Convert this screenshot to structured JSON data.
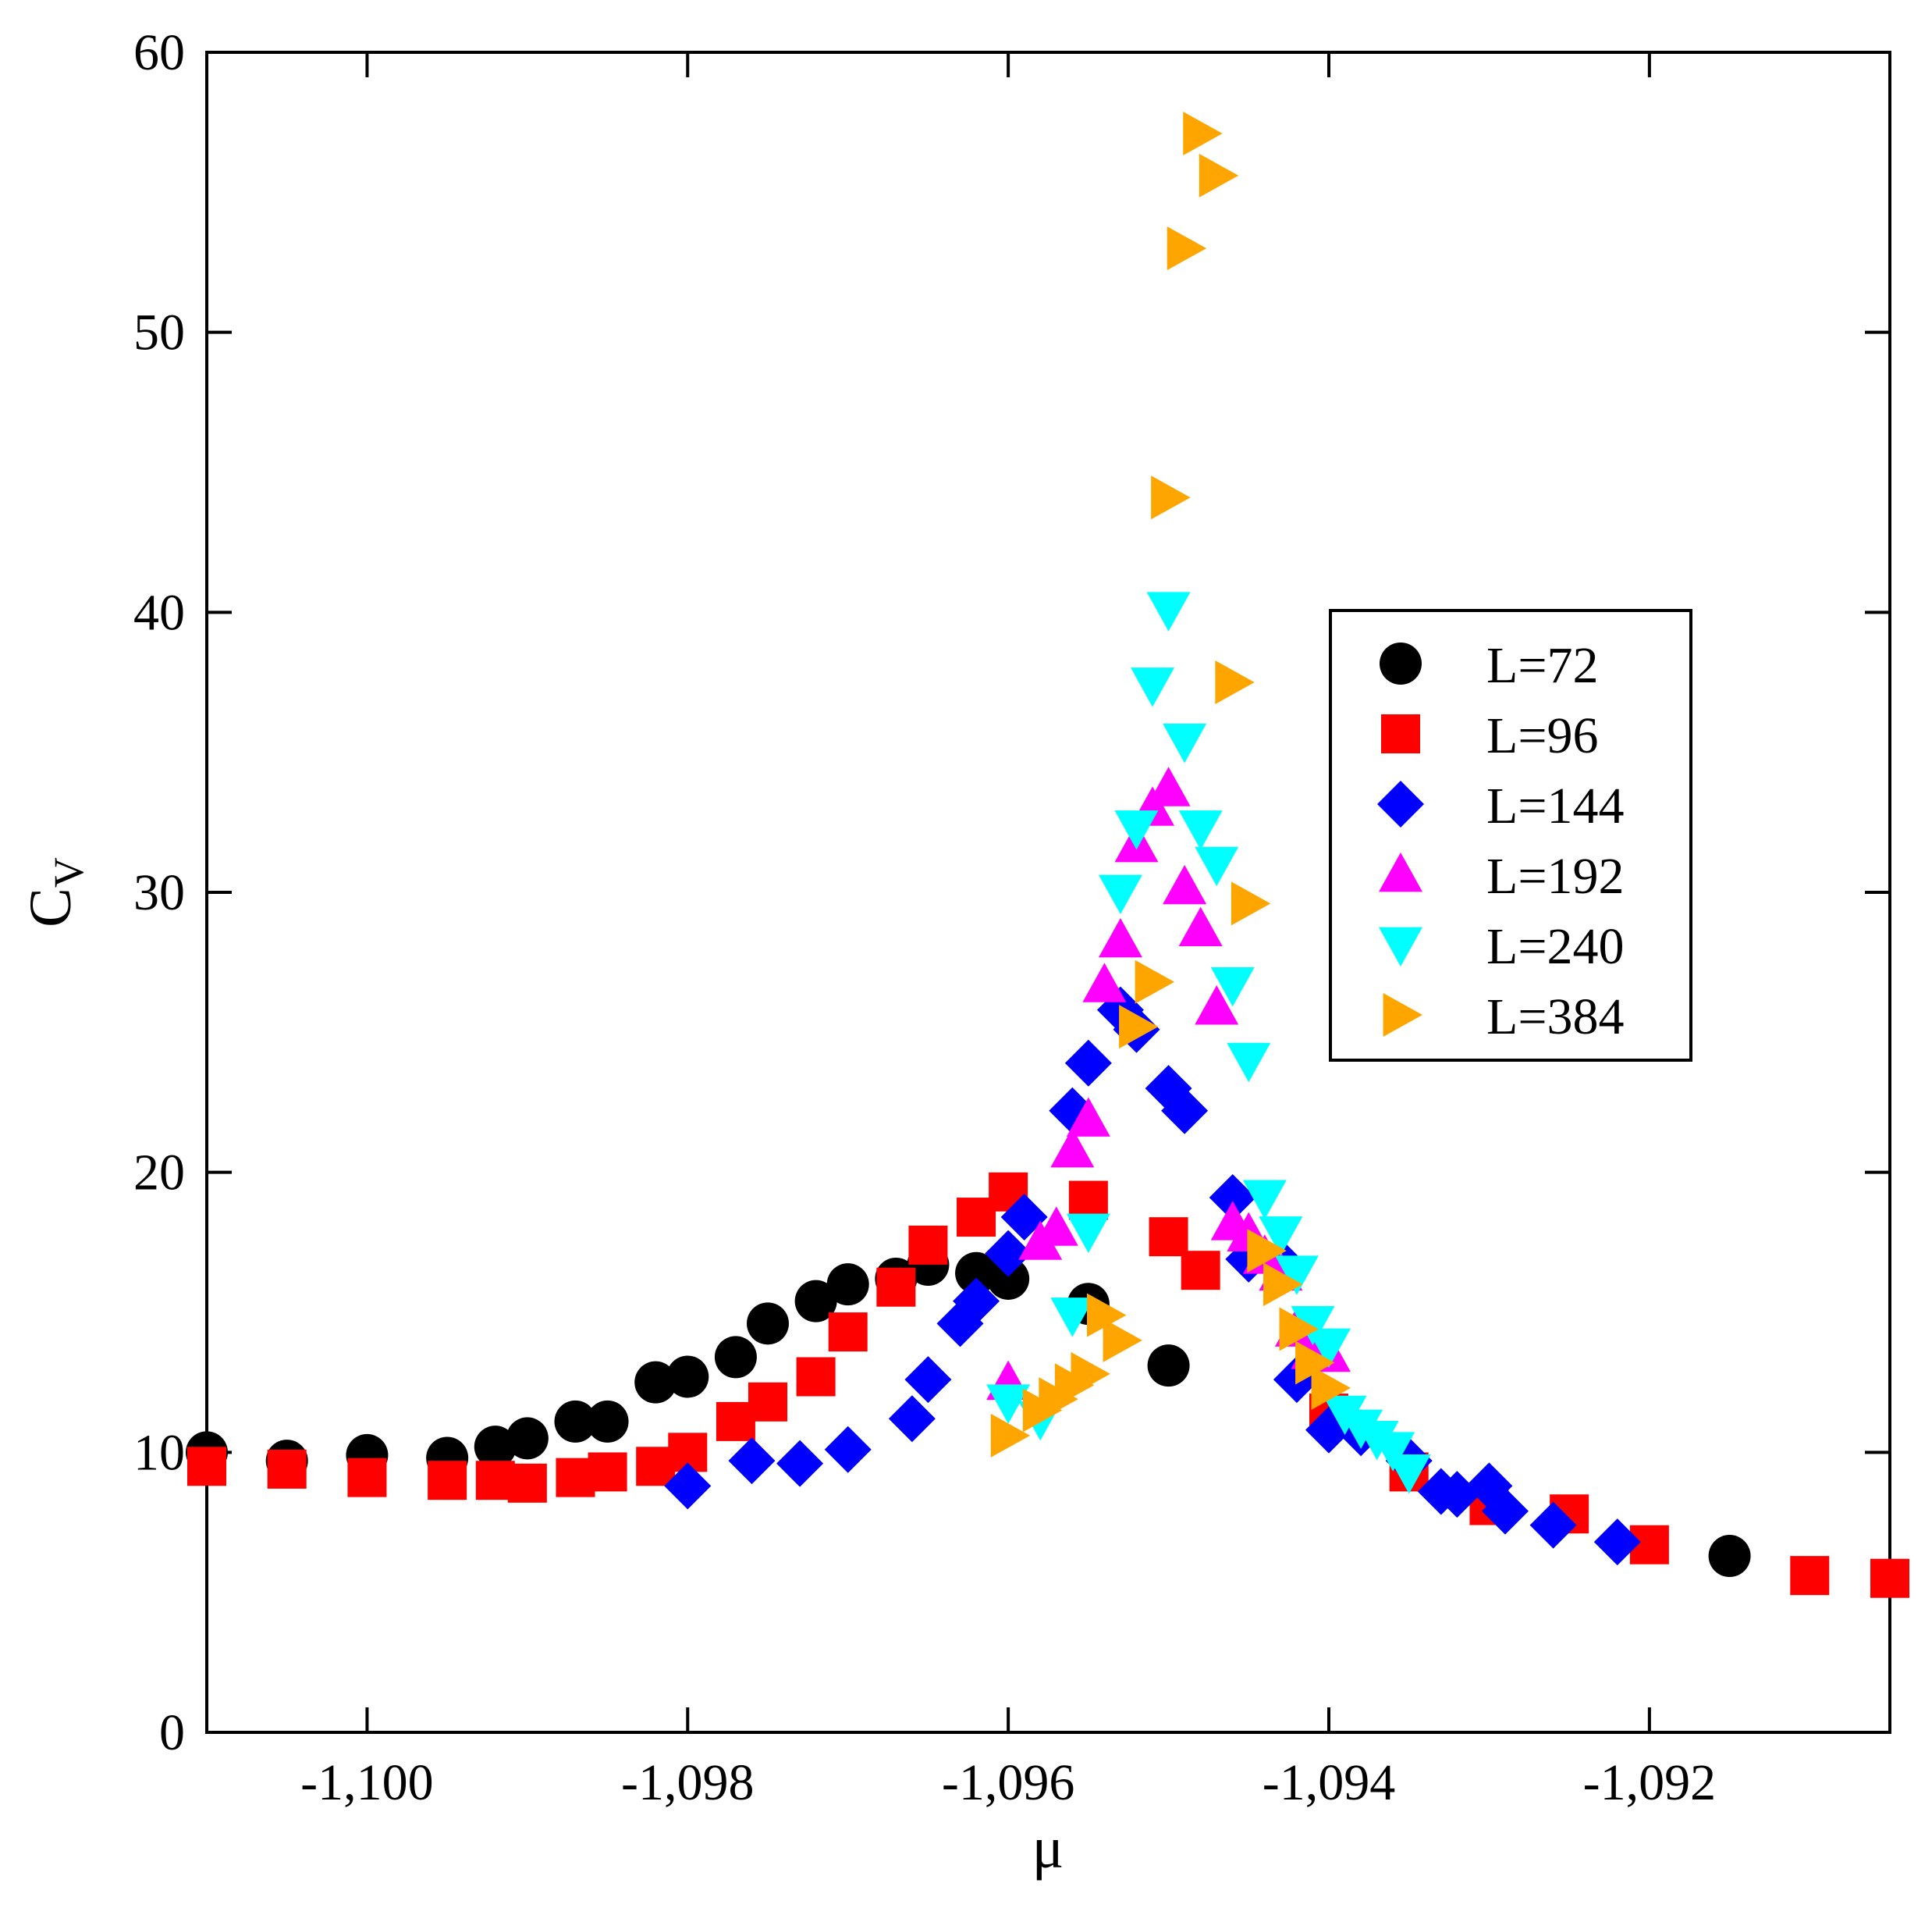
{
  "chart_data": {
    "type": "scatter",
    "title": "",
    "xlabel": "μ",
    "ylabel": "C",
    "ylabel_sub": "V",
    "xlim": [
      -1.101,
      -1.0905
    ],
    "ylim": [
      0,
      60
    ],
    "x_ticks": [
      -1.1,
      -1.098,
      -1.096,
      -1.094,
      -1.092
    ],
    "x_tick_labels": [
      "-1,100",
      "-1,098",
      "-1,096",
      "-1,094",
      "-1,092"
    ],
    "y_ticks": [
      0,
      10,
      20,
      30,
      40,
      50,
      60
    ],
    "y_tick_labels": [
      "0",
      "10",
      "20",
      "30",
      "40",
      "50",
      "60"
    ],
    "grid": false,
    "legend_position": "right",
    "series": [
      {
        "name": "L=72",
        "marker": "circle",
        "color": "#000000",
        "x": [
          -1.101,
          -1.1005,
          -1.1,
          -1.0995,
          -1.0992,
          -1.099,
          -1.0987,
          -1.0985,
          -1.0982,
          -1.098,
          -1.0977,
          -1.0975,
          -1.0972,
          -1.097,
          -1.0967,
          -1.0965,
          -1.0962,
          -1.096,
          -1.0955,
          -1.095,
          -1.0915
        ],
        "y": [
          10.0,
          9.7,
          9.9,
          9.8,
          10.2,
          10.5,
          11.1,
          11.1,
          12.5,
          12.7,
          13.4,
          14.6,
          15.4,
          16.0,
          16.2,
          16.7,
          16.4,
          16.2,
          15.3,
          13.1,
          6.3
        ]
      },
      {
        "name": "L=96",
        "marker": "square",
        "color": "#ff0000",
        "x": [
          -1.101,
          -1.1005,
          -1.1,
          -1.0995,
          -1.0992,
          -1.099,
          -1.0987,
          -1.0985,
          -1.0982,
          -1.098,
          -1.0977,
          -1.0975,
          -1.0972,
          -1.097,
          -1.0967,
          -1.0965,
          -1.0962,
          -1.096,
          -1.0955,
          -1.095,
          -1.0948,
          -1.094,
          -1.0935,
          -1.093,
          -1.0925,
          -1.092,
          -1.091,
          -1.0905
        ],
        "y": [
          9.5,
          9.4,
          9.1,
          9.0,
          9.0,
          8.9,
          9.1,
          9.3,
          9.5,
          10.0,
          11.1,
          11.8,
          12.7,
          14.3,
          15.9,
          17.4,
          18.4,
          19.3,
          19.0,
          17.7,
          16.5,
          11.4,
          9.3,
          8.1,
          7.8,
          6.7,
          5.6,
          5.5
        ]
      },
      {
        "name": "L=144",
        "marker": "diamond",
        "color": "#0000ff",
        "x": [
          -1.098,
          -1.0976,
          -1.0973,
          -1.097,
          -1.0966,
          -1.0965,
          -1.0963,
          -1.0962,
          -1.096,
          -1.0959,
          -1.0956,
          -1.0955,
          -1.0953,
          -1.0952,
          -1.095,
          -1.0949,
          -1.0946,
          -1.0945,
          -1.0943,
          -1.0942,
          -1.094,
          -1.0938,
          -1.0935,
          -1.0933,
          -1.0932,
          -1.093,
          -1.0929,
          -1.0926,
          -1.0922
        ],
        "y": [
          8.8,
          9.7,
          9.6,
          10.1,
          11.2,
          12.6,
          14.6,
          15.4,
          17.1,
          18.4,
          22.2,
          23.9,
          25.8,
          25.1,
          23.0,
          22.2,
          19.1,
          16.9,
          16.8,
          12.6,
          10.8,
          10.7,
          9.7,
          8.6,
          8.5,
          8.8,
          7.9,
          7.4,
          6.8
        ]
      },
      {
        "name": "L=192",
        "marker": "triangle-up",
        "color": "#ff00ff",
        "x": [
          -1.096,
          -1.0958,
          -1.0957,
          -1.0956,
          -1.0955,
          -1.0954,
          -1.0953,
          -1.0952,
          -1.0951,
          -1.095,
          -1.0949,
          -1.0948,
          -1.0947,
          -1.0946,
          -1.0945,
          -1.0944,
          -1.0943,
          -1.0942,
          -1.0941,
          -1.094
        ],
        "y": [
          12.5,
          17.5,
          18.0,
          20.8,
          21.9,
          26.7,
          28.3,
          31.7,
          33.0,
          33.7,
          30.2,
          28.7,
          25.9,
          18.2,
          17.8,
          17.0,
          16.4,
          14.4,
          13.6,
          13.5
        ]
      },
      {
        "name": "L=240",
        "marker": "triangle-down",
        "color": "#00ffff",
        "x": [
          -1.096,
          -1.0958,
          -1.0956,
          -1.0955,
          -1.0953,
          -1.0952,
          -1.0951,
          -1.095,
          -1.0949,
          -1.0948,
          -1.0947,
          -1.0946,
          -1.0945,
          -1.0944,
          -1.0943,
          -1.0942,
          -1.0941,
          -1.094,
          -1.0939,
          -1.0938,
          -1.0937,
          -1.0936,
          -1.0935
        ],
        "y": [
          11.8,
          11.2,
          14.9,
          17.9,
          30.0,
          32.3,
          37.4,
          40.1,
          35.4,
          32.3,
          31.0,
          26.7,
          24.0,
          19.1,
          17.8,
          16.4,
          14.6,
          13.8,
          11.4,
          10.9,
          10.5,
          10.1,
          9.3
        ]
      },
      {
        "name": "L=384",
        "marker": "triangle-right",
        "color": "#ffa500",
        "x": [
          -1.096,
          -1.0958,
          -1.0957,
          -1.0956,
          -1.0955,
          -1.0954,
          -1.0953,
          -1.0952,
          -1.0951,
          -1.095,
          -1.0949,
          -1.0948,
          -1.0947,
          -1.0946,
          -1.0945,
          -1.0944,
          -1.0943,
          -1.0942,
          -1.0941,
          -1.094
        ],
        "y": [
          10.6,
          11.5,
          11.9,
          12.4,
          12.8,
          14.9,
          14.0,
          25.2,
          26.8,
          44.1,
          53.0,
          57.1,
          55.6,
          37.5,
          29.6,
          17.2,
          16.0,
          14.4,
          13.2,
          12.3
        ]
      }
    ]
  }
}
